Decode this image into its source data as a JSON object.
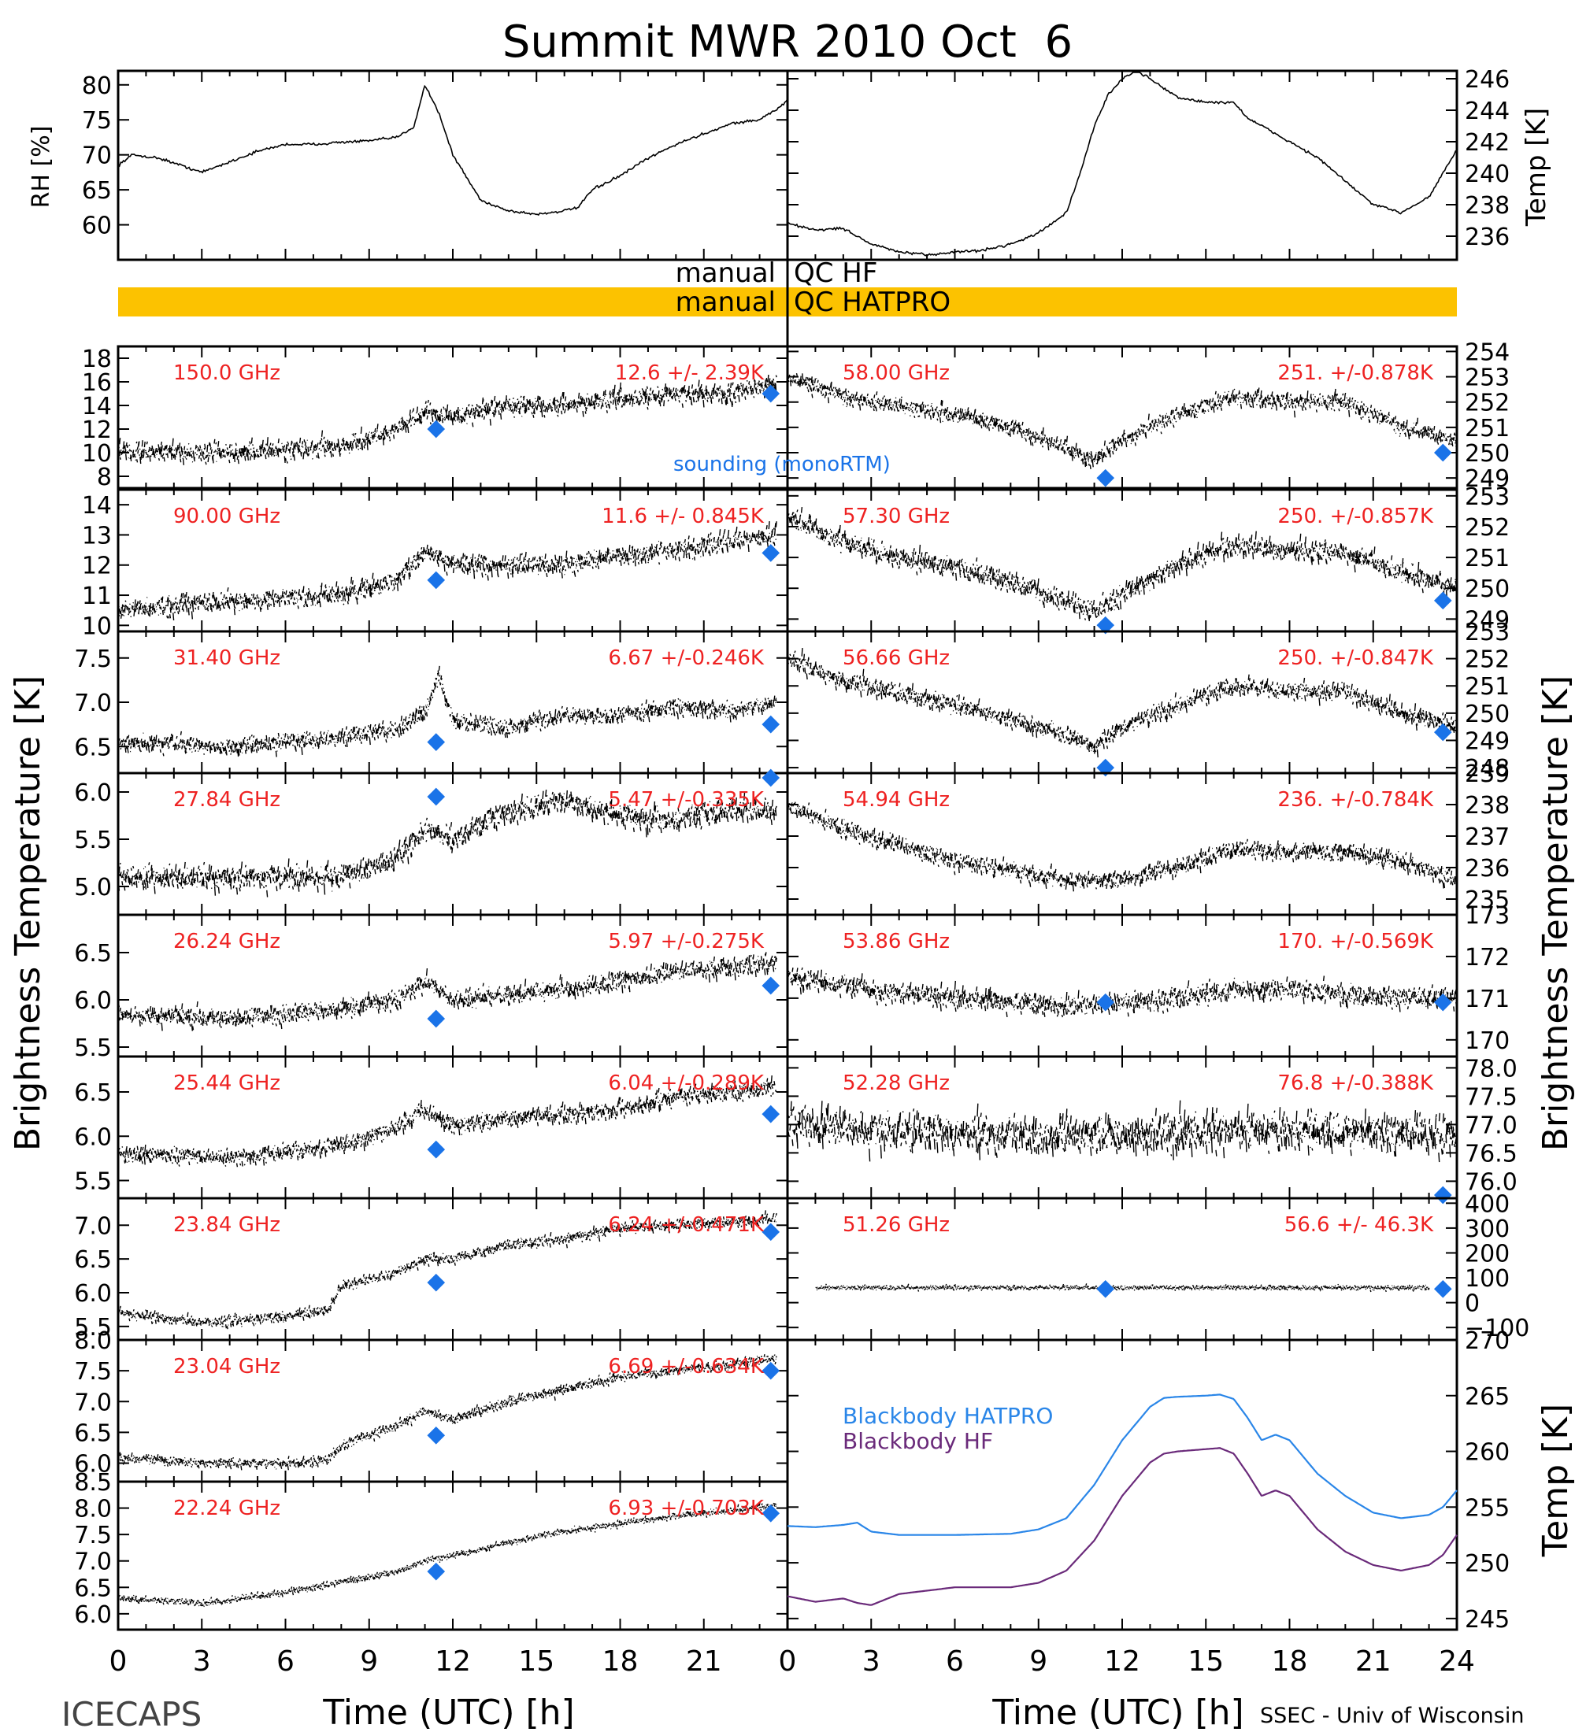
{
  "page": {
    "title": "Summit MWR 2010 Oct  6",
    "left_credit": "ICECAPS",
    "right_credit": "SSEC - Univ of Wisconsin",
    "xlabel": "Time (UTC) [h]",
    "left_ylabel": "Brightness Temperature [K]",
    "right_ylabel": "Brightness Temperature [K]"
  },
  "colors": {
    "trace": "#000000",
    "channel_label": "#ee2222",
    "sounding_marker": "#1a73e8",
    "blackbody_hatpro": "#2a86e8",
    "blackbody_hf": "#6a2a7a",
    "qc_bar": "#fcc200"
  },
  "legend": {
    "sounding": "sounding (monoRTM)",
    "bb_hatpro": "Blackbody HATPRO",
    "bb_hf": "Blackbody HF"
  },
  "qc": {
    "hf_label_left": "manual",
    "hf_label_right": "QC HF",
    "hatpro_label_left": "manual",
    "hatpro_label_right": "QC HATPRO"
  },
  "chart_data": [
    {
      "type": "line",
      "ylabel": "RH [%]",
      "xlim": [
        0,
        24
      ],
      "ylim": [
        55,
        82
      ],
      "yticks": [
        60,
        65,
        70,
        75,
        80
      ],
      "x": [
        0,
        0.5,
        1.5,
        3,
        4,
        5,
        6,
        7,
        8,
        9,
        10,
        10.6,
        11,
        11.5,
        12,
        13,
        14,
        15,
        16,
        16.5,
        17,
        18,
        19,
        20,
        21,
        22,
        23,
        23.8,
        24
      ],
      "series": [
        {
          "values": [
            68.5,
            70,
            69.5,
            67.5,
            69,
            70.5,
            71.5,
            71.5,
            71.8,
            72,
            72.5,
            74,
            80,
            76,
            70,
            63.5,
            62,
            61.5,
            62,
            62.5,
            65,
            67,
            69.5,
            71.5,
            73,
            74.5,
            75,
            77,
            78
          ]
        }
      ]
    },
    {
      "type": "line",
      "ylabel": "Temp [K]",
      "xlim": [
        0,
        24
      ],
      "ylim": [
        234.5,
        246.5
      ],
      "yticks": [
        236,
        238,
        240,
        242,
        244,
        246
      ],
      "x": [
        0,
        1,
        2,
        3,
        4,
        5,
        6,
        7,
        8,
        9,
        10,
        10.5,
        11,
        11.5,
        12,
        12.5,
        13,
        14,
        15,
        16,
        16.5,
        17,
        18,
        19,
        20,
        21,
        22,
        23,
        24
      ],
      "series": [
        {
          "values": [
            236.8,
            236.4,
            236.5,
            235.5,
            235,
            234.8,
            235,
            235.1,
            235.5,
            236.2,
            237.5,
            240,
            243,
            245,
            246,
            246.5,
            246,
            244.8,
            244.5,
            244.5,
            243.5,
            243,
            242,
            241,
            239.5,
            238,
            237.5,
            238.5,
            241.5
          ]
        }
      ]
    },
    {
      "type": "scatter",
      "group": "HF",
      "channel": "150.0 GHz",
      "stats": "12.6 +/- 2.39K",
      "xlim": [
        0,
        24
      ],
      "ylim": [
        7,
        19
      ],
      "yticks": [
        8,
        10,
        12,
        14,
        16,
        18
      ],
      "x": [
        0,
        4,
        8,
        10,
        11,
        12,
        14,
        16,
        18,
        20,
        22,
        23.6
      ],
      "values": [
        10,
        10,
        10.5,
        12,
        13.5,
        13,
        14,
        14,
        14.5,
        15,
        15,
        16
      ],
      "noise": 1.0,
      "sounding": [
        {
          "x": 11.4,
          "y": 12
        },
        {
          "x": 23.4,
          "y": 15
        }
      ]
    },
    {
      "type": "scatter",
      "group": "HF",
      "channel": "90.00 GHz",
      "stats": "11.6 +/- 0.845K",
      "xlim": [
        0,
        24
      ],
      "ylim": [
        9.8,
        14.5
      ],
      "yticks": [
        10,
        11,
        12,
        13,
        14
      ],
      "x": [
        0,
        4,
        8,
        10,
        11,
        12,
        14,
        16,
        18,
        20,
        22,
        23.6
      ],
      "values": [
        10.5,
        10.8,
        11,
        11.5,
        12.5,
        12,
        12,
        12,
        12.3,
        12.5,
        12.8,
        13
      ],
      "noise": 0.4,
      "sounding": [
        {
          "x": 11.4,
          "y": 11.5
        },
        {
          "x": 23.4,
          "y": 12.4
        }
      ]
    },
    {
      "type": "scatter",
      "group": "HF",
      "channel": "31.40 GHz",
      "stats": "6.67 +/-0.246K",
      "xlim": [
        0,
        24
      ],
      "ylim": [
        6.2,
        7.8
      ],
      "yticks": [
        6.5,
        7.0,
        7.5
      ],
      "x": [
        0,
        4,
        8,
        10,
        11,
        11.5,
        12,
        14,
        16,
        18,
        20,
        22,
        23.6
      ],
      "values": [
        6.55,
        6.5,
        6.6,
        6.7,
        6.9,
        7.3,
        6.8,
        6.7,
        6.85,
        6.85,
        6.95,
        6.9,
        7.0
      ],
      "noise": 0.12,
      "sounding": [
        {
          "x": 11.4,
          "y": 6.55
        },
        {
          "x": 23.4,
          "y": 6.75
        }
      ]
    },
    {
      "type": "scatter",
      "group": "HF",
      "channel": "27.84 GHz",
      "stats": "5.47 +/-0.335K",
      "xlim": [
        0,
        24
      ],
      "ylim": [
        4.7,
        6.2
      ],
      "yticks": [
        5.0,
        5.5,
        6.0
      ],
      "x": [
        0,
        4,
        8,
        10,
        11,
        12,
        14,
        16,
        18,
        20,
        22,
        23.6
      ],
      "values": [
        5.1,
        5.1,
        5.1,
        5.3,
        5.6,
        5.5,
        5.8,
        5.9,
        5.75,
        5.7,
        5.8,
        5.8
      ],
      "noise": 0.15,
      "sounding": [
        {
          "x": 11.4,
          "y": 5.95
        },
        {
          "x": 23.4,
          "y": 6.15
        }
      ]
    },
    {
      "type": "scatter",
      "group": "HF",
      "channel": "26.24 GHz",
      "stats": "5.97 +/-0.275K",
      "xlim": [
        0,
        24
      ],
      "ylim": [
        5.4,
        6.9
      ],
      "yticks": [
        5.5,
        6.0,
        6.5
      ],
      "x": [
        0,
        4,
        8,
        10,
        11,
        12,
        14,
        16,
        18,
        20,
        22,
        23.6
      ],
      "values": [
        5.85,
        5.8,
        5.9,
        6.0,
        6.2,
        6.0,
        6.05,
        6.1,
        6.2,
        6.3,
        6.35,
        6.4
      ],
      "noise": 0.12,
      "sounding": [
        {
          "x": 11.4,
          "y": 5.8
        },
        {
          "x": 23.4,
          "y": 6.15
        }
      ]
    },
    {
      "type": "scatter",
      "group": "HF",
      "channel": "25.44 GHz",
      "stats": "6.04 +/-0.289K",
      "xlim": [
        0,
        24
      ],
      "ylim": [
        5.3,
        6.9
      ],
      "yticks": [
        5.5,
        6.0,
        6.5
      ],
      "x": [
        0,
        4,
        8,
        10,
        11,
        12,
        14,
        16,
        18,
        20,
        22,
        23.6
      ],
      "values": [
        5.8,
        5.75,
        5.9,
        6.1,
        6.3,
        6.1,
        6.2,
        6.25,
        6.3,
        6.45,
        6.5,
        6.55
      ],
      "noise": 0.12,
      "sounding": [
        {
          "x": 11.4,
          "y": 5.85
        },
        {
          "x": 23.4,
          "y": 6.25
        }
      ]
    },
    {
      "type": "scatter",
      "group": "HF",
      "channel": "23.84 GHz",
      "stats": "6.24 +/-0.471K",
      "xlim": [
        0,
        24
      ],
      "ylim": [
        5.3,
        7.4
      ],
      "yticks": [
        5.5,
        6.0,
        6.5,
        7.0
      ],
      "x": [
        0,
        3,
        6,
        7.5,
        8,
        10,
        11,
        12,
        14,
        16,
        18,
        20,
        22,
        23.6
      ],
      "values": [
        5.7,
        5.55,
        5.65,
        5.75,
        6.1,
        6.3,
        6.5,
        6.5,
        6.7,
        6.8,
        6.95,
        7.0,
        7.05,
        7.1
      ],
      "noise": 0.1,
      "sounding": [
        {
          "x": 11.4,
          "y": 6.15
        },
        {
          "x": 23.4,
          "y": 6.9
        }
      ]
    },
    {
      "type": "scatter",
      "group": "HF",
      "channel": "23.04 GHz",
      "stats": "6.69 +/-0.634K",
      "xlim": [
        0,
        24
      ],
      "ylim": [
        5.7,
        8.0
      ],
      "yticks": [
        6.0,
        6.5,
        7.0,
        7.5,
        8.0
      ],
      "x": [
        0,
        3,
        6,
        7.5,
        8,
        10,
        11,
        12,
        14,
        16,
        18,
        20,
        22,
        23.6
      ],
      "values": [
        6.1,
        6.0,
        6.0,
        6.05,
        6.3,
        6.6,
        6.85,
        6.7,
        7.0,
        7.2,
        7.4,
        7.5,
        7.6,
        7.7
      ],
      "noise": 0.1,
      "sounding": [
        {
          "x": 11.4,
          "y": 6.45
        },
        {
          "x": 23.4,
          "y": 7.5
        }
      ]
    },
    {
      "type": "scatter",
      "group": "HF",
      "channel": "22.24 GHz",
      "stats": "6.93 +/-0.703K",
      "xlim": [
        0,
        24
      ],
      "ylim": [
        5.7,
        8.5
      ],
      "yticks": [
        6.0,
        6.5,
        7.0,
        7.5,
        8.0,
        8.5
      ],
      "x": [
        0,
        3,
        6,
        8,
        10,
        11,
        12,
        14,
        16,
        18,
        20,
        22,
        23.6
      ],
      "values": [
        6.3,
        6.2,
        6.4,
        6.6,
        6.8,
        7.0,
        7.1,
        7.35,
        7.55,
        7.7,
        7.85,
        7.95,
        8.05
      ],
      "noise": 0.08,
      "sounding": [
        {
          "x": 11.4,
          "y": 6.8
        },
        {
          "x": 23.4,
          "y": 7.9
        }
      ]
    },
    {
      "type": "scatter",
      "group": "HATPRO",
      "channel": "58.00 GHz",
      "stats": "251. +/-0.878K",
      "xlim": [
        0,
        24
      ],
      "ylim": [
        248.6,
        254.2
      ],
      "yticks": [
        249,
        250,
        251,
        252,
        253,
        254
      ],
      "x": [
        0,
        2,
        4,
        6,
        8,
        10,
        11,
        12,
        14,
        16,
        18,
        20,
        22,
        24
      ],
      "values": [
        253,
        252.2,
        251.8,
        251.5,
        251,
        250.2,
        249.7,
        250.5,
        251.5,
        252.2,
        252,
        252,
        251,
        250.5
      ],
      "noise": 0.4,
      "sounding": [
        {
          "x": 11.4,
          "y": 249
        },
        {
          "x": 23.5,
          "y": 250
        }
      ]
    },
    {
      "type": "scatter",
      "group": "HATPRO",
      "channel": "57.30 GHz",
      "stats": "250. +/-0.857K",
      "xlim": [
        0,
        24
      ],
      "ylim": [
        248.6,
        253.2
      ],
      "yticks": [
        249,
        250,
        251,
        252,
        253
      ],
      "x": [
        0,
        2,
        4,
        6,
        8,
        10,
        11,
        12,
        14,
        16,
        18,
        20,
        22,
        24
      ],
      "values": [
        252.3,
        251.5,
        251,
        250.7,
        250.2,
        249.6,
        249.2,
        249.8,
        250.8,
        251.4,
        251.2,
        251.2,
        250.5,
        250
      ],
      "noise": 0.4,
      "sounding": [
        {
          "x": 11.4,
          "y": 248.8
        },
        {
          "x": 23.5,
          "y": 249.6
        }
      ]
    },
    {
      "type": "scatter",
      "group": "HATPRO",
      "channel": "56.66 GHz",
      "stats": "250. +/-0.847K",
      "xlim": [
        0,
        24
      ],
      "ylim": [
        247.8,
        253
      ],
      "yticks": [
        248,
        249,
        250,
        251,
        252,
        253
      ],
      "x": [
        0,
        2,
        4,
        6,
        8,
        10,
        11,
        12,
        14,
        16,
        18,
        20,
        22,
        24
      ],
      "values": [
        252,
        251.2,
        250.7,
        250.3,
        249.8,
        249.2,
        248.8,
        249.5,
        250.3,
        251,
        250.8,
        250.8,
        250,
        249.5
      ],
      "noise": 0.4,
      "sounding": [
        {
          "x": 11.4,
          "y": 248
        },
        {
          "x": 23.5,
          "y": 249.3
        }
      ]
    },
    {
      "type": "scatter",
      "group": "HATPRO",
      "channel": "54.94 GHz",
      "stats": "236. +/-0.784K",
      "xlim": [
        0,
        24
      ],
      "ylim": [
        234.5,
        239
      ],
      "yticks": [
        235,
        236,
        237,
        238,
        239
      ],
      "x": [
        0,
        2,
        4,
        6,
        8,
        10,
        12,
        14,
        16,
        18,
        20,
        22,
        24
      ],
      "values": [
        238,
        237.2,
        236.7,
        236.2,
        235.9,
        235.6,
        235.6,
        236,
        236.6,
        236.5,
        236.5,
        236.2,
        235.6
      ],
      "noise": 0.35,
      "sounding": []
    },
    {
      "type": "scatter",
      "group": "HATPRO",
      "channel": "53.86 GHz",
      "stats": "170. +/-0.569K",
      "xlim": [
        0,
        24
      ],
      "ylim": [
        169.6,
        173
      ],
      "yticks": [
        170,
        171,
        172,
        173
      ],
      "x": [
        0,
        2,
        4,
        6,
        8,
        10,
        12,
        14,
        16,
        18,
        20,
        22,
        24
      ],
      "values": [
        171.5,
        171.3,
        171.1,
        171,
        170.9,
        170.8,
        170.9,
        171,
        171.2,
        171.2,
        171.1,
        171,
        171
      ],
      "noise": 0.3,
      "sounding": [
        {
          "x": 11.4,
          "y": 170.9
        },
        {
          "x": 23.5,
          "y": 170.9
        }
      ]
    },
    {
      "type": "scatter",
      "group": "HATPRO",
      "channel": "52.28 GHz",
      "stats": "76.8 +/-0.388K",
      "xlim": [
        0,
        24
      ],
      "ylim": [
        75.7,
        78.2
      ],
      "yticks": [
        76.0,
        76.5,
        77.0,
        77.5,
        78.0
      ],
      "x": [
        0,
        4,
        8,
        12,
        16,
        20,
        24
      ],
      "values": [
        77,
        76.9,
        76.8,
        76.8,
        76.9,
        76.9,
        76.8
      ],
      "noise": 0.4,
      "sounding": [
        {
          "x": 23.5,
          "y": 75.75
        }
      ]
    },
    {
      "type": "scatter",
      "group": "HATPRO",
      "channel": "51.26 GHz",
      "stats": "56.6 +/- 46.3K",
      "xlim": [
        0,
        24
      ],
      "ylim": [
        -150,
        420
      ],
      "yticks": [
        -100,
        0,
        100,
        200,
        300,
        400
      ],
      "x": [
        1,
        4,
        8,
        12,
        16,
        20,
        23
      ],
      "values": [
        60,
        60,
        60,
        60,
        60,
        60,
        60
      ],
      "noise": 12,
      "sounding": [
        {
          "x": 11.4,
          "y": 55
        },
        {
          "x": 23.5,
          "y": 55
        }
      ]
    },
    {
      "type": "line",
      "ylabel": "Temp [K]",
      "xlim": [
        0,
        24
      ],
      "ylim": [
        244,
        270
      ],
      "yticks": [
        245,
        250,
        255,
        260,
        265,
        270
      ],
      "xlabel": "Time (UTC) [h]",
      "x": [
        0,
        1,
        2,
        2.5,
        3,
        4,
        6,
        8,
        9,
        10,
        11,
        12,
        13,
        13.5,
        14,
        15,
        15.5,
        16,
        16.5,
        17,
        17.5,
        18,
        19,
        20,
        21,
        22,
        23,
        23.5,
        24
      ],
      "series": [
        {
          "name": "Blackbody HATPRO",
          "values": [
            253.3,
            253.2,
            253.4,
            253.6,
            252.8,
            252.5,
            252.5,
            252.6,
            253,
            254,
            257,
            261,
            264,
            264.8,
            264.9,
            265,
            265.1,
            264.7,
            263,
            261,
            261.5,
            261,
            258,
            256,
            254.5,
            254,
            254.3,
            255,
            256.5
          ]
        },
        {
          "name": "Blackbody HF",
          "values": [
            247,
            246.5,
            246.8,
            246.4,
            246.2,
            247.2,
            247.8,
            247.8,
            248.2,
            249.3,
            252,
            256,
            259,
            259.8,
            260,
            260.2,
            260.3,
            259.8,
            258,
            256,
            256.5,
            256,
            253,
            251,
            249.8,
            249.3,
            249.8,
            250.7,
            252.5
          ]
        }
      ]
    }
  ]
}
